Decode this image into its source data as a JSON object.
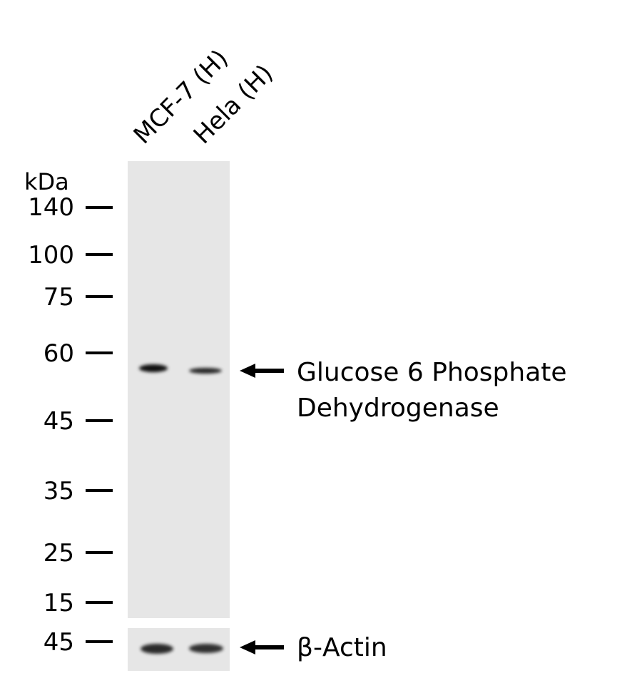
{
  "lanes": [
    "MCF-7 (H)",
    "Hela (H)"
  ],
  "unit_label": "kDa",
  "markers": [
    "140",
    "100",
    "75",
    "60",
    "45",
    "35",
    "25",
    "15"
  ],
  "loading_marker": "45",
  "target": {
    "line1": "Glucose 6 Phosphate",
    "line2": "Dehydrogenase"
  },
  "control": "β-Actin",
  "colors": {
    "membrane": "#e6e6e6",
    "band": "#111111"
  }
}
